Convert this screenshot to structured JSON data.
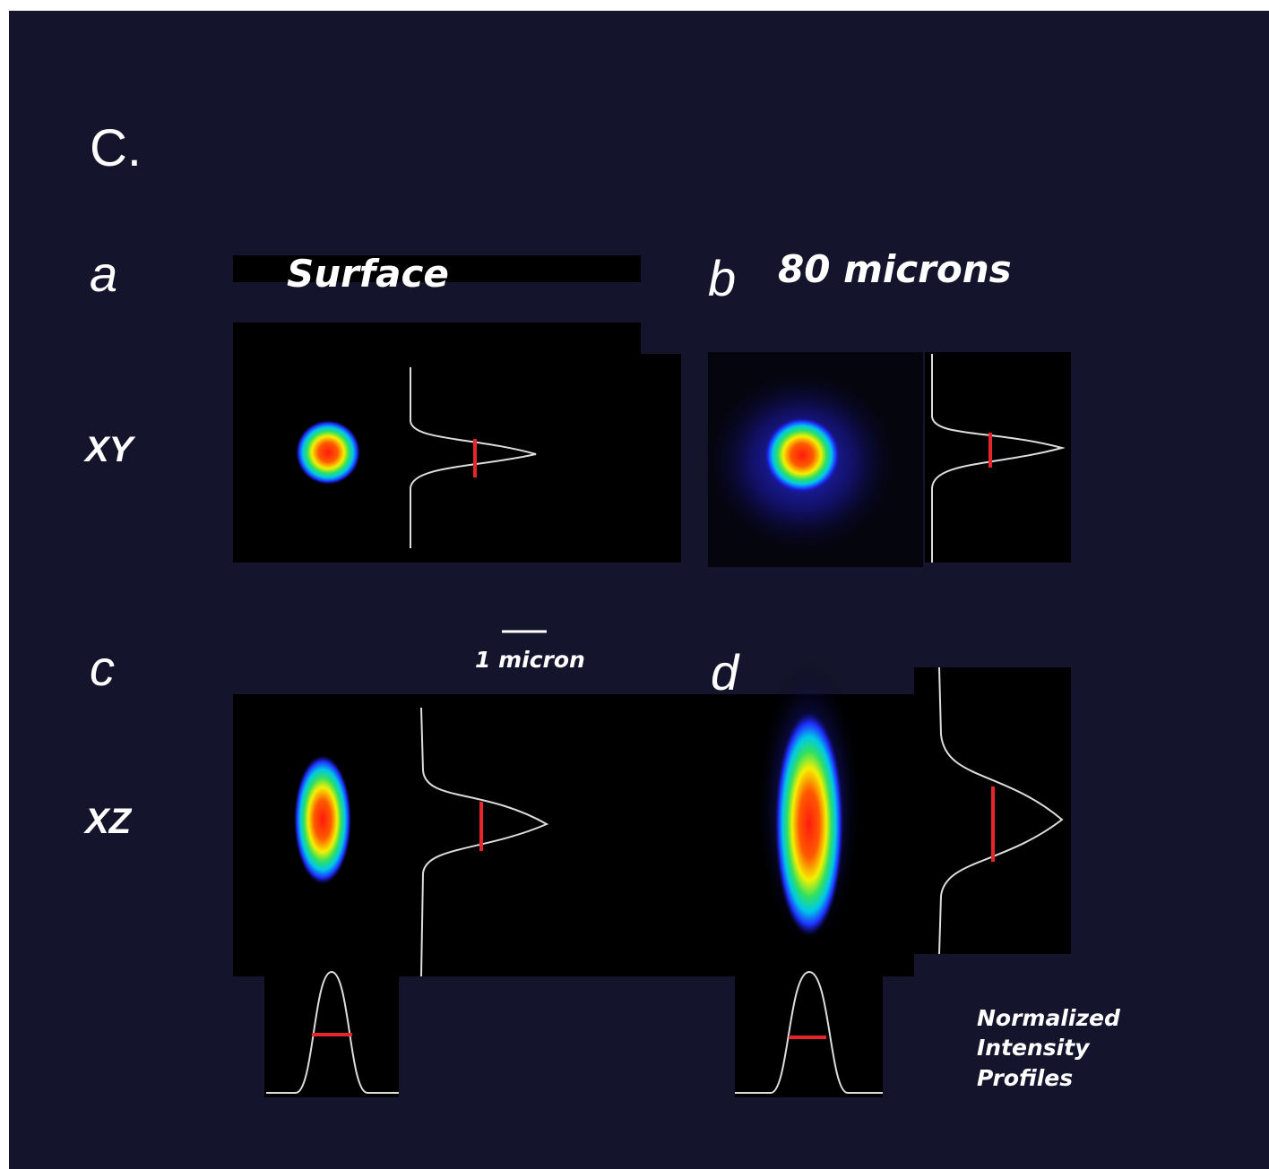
{
  "figure_label": "C.",
  "panels": [
    {
      "letter": "a",
      "title": "Surface"
    },
    {
      "letter": "b",
      "title": "80 microns"
    },
    {
      "letter": "c"
    },
    {
      "letter": "d"
    }
  ],
  "row_labels": [
    "XY",
    "XZ"
  ],
  "scale_bar": "1 micron",
  "legend_lines": [
    "Normalized",
    "Intensity",
    "Profiles"
  ]
}
